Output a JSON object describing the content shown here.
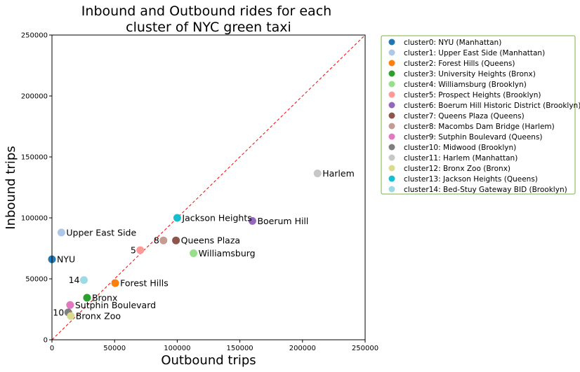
{
  "chart_data": {
    "type": "scatter",
    "title_lines": [
      "Inbound and Outbound rides for each",
      "cluster of NYC green taxi"
    ],
    "xlabel": "Outbound trips",
    "ylabel": "Inbound trips",
    "xlim": [
      0,
      250000
    ],
    "ylim": [
      0,
      250000
    ],
    "xticks": [
      "0",
      "50000",
      "100000",
      "150000",
      "200000",
      "250000"
    ],
    "yticks": [
      "0",
      "50000",
      "100000",
      "150000",
      "200000",
      "250000"
    ],
    "grid": false,
    "legend_position": "outside-right",
    "reference_line": {
      "style": "dashed",
      "color": "#ff0000",
      "from": [
        0,
        0
      ],
      "to": [
        250000,
        250000
      ]
    },
    "series": [
      {
        "name": "cluster0: NYU (Manhattan)",
        "label": "NYU",
        "label_side": "right",
        "color": "#1f77b4",
        "x": 0,
        "y": 66000
      },
      {
        "name": "cluster1: Upper East Side (Manhattan)",
        "label": "Upper East Side",
        "label_side": "right",
        "color": "#aec7e8",
        "x": 7500,
        "y": 88000
      },
      {
        "name": "cluster2: Forest Hills (Queens)",
        "label": "Forest Hills",
        "label_side": "right",
        "color": "#ff7f0e",
        "x": 50500,
        "y": 46500
      },
      {
        "name": "cluster3: University Heights (Bronx)",
        "label": "Bronx",
        "label_side": "right",
        "color": "#2ca02c",
        "x": 28000,
        "y": 34500
      },
      {
        "name": "cluster4: Williamsburg (Brooklyn)",
        "label": "Williamsburg",
        "label_side": "right",
        "color": "#98df8a",
        "x": 113000,
        "y": 71000
      },
      {
        "name": "cluster5: Prospect Heights (Brooklyn)",
        "label": "5",
        "label_side": "left",
        "color": "#ff9896",
        "x": 70500,
        "y": 73500
      },
      {
        "name": "cluster6: Boerum Hill Historic District (Brooklyn)",
        "label": "Boerum Hill",
        "label_side": "right",
        "color": "#9467bd",
        "x": 160000,
        "y": 97500
      },
      {
        "name": "cluster7: Queens Plaza (Queens)",
        "label": "Queens Plaza",
        "label_side": "right",
        "color": "#8c564b",
        "x": 99000,
        "y": 81500
      },
      {
        "name": "cluster8: Macombs Dam Bridge (Harlem)",
        "label": "8",
        "label_side": "left",
        "color": "#c49c94",
        "x": 89000,
        "y": 81500
      },
      {
        "name": "cluster9: Sutphin Boulevard (Queens)",
        "label": "Sutphin Boulevard",
        "label_side": "right",
        "color": "#e377c2",
        "x": 14500,
        "y": 28500
      },
      {
        "name": "cluster10: Midwood (Brooklyn)",
        "label": "10",
        "label_side": "left",
        "color": "#7f7f7f",
        "x": 13000,
        "y": 22500
      },
      {
        "name": "cluster11: Harlem (Manhattan)",
        "label": "Harlem",
        "label_side": "right",
        "color": "#c7c7c7",
        "x": 212000,
        "y": 136500
      },
      {
        "name": "cluster12: Bronx Zoo (Bronx)",
        "label": "Bronx Zoo",
        "label_side": "right",
        "color": "#dbdb8d",
        "x": 15000,
        "y": 19500
      },
      {
        "name": "cluster13: Jackson Heights (Queens)",
        "label": "Jackson Heights",
        "label_side": "right",
        "color": "#17becf",
        "x": 100000,
        "y": 100000
      },
      {
        "name": "cluster14: Bed-Stuy Gateway BID (Brooklyn)",
        "label": "14",
        "label_side": "left",
        "color": "#9edae5",
        "x": 25500,
        "y": 49000
      }
    ]
  }
}
